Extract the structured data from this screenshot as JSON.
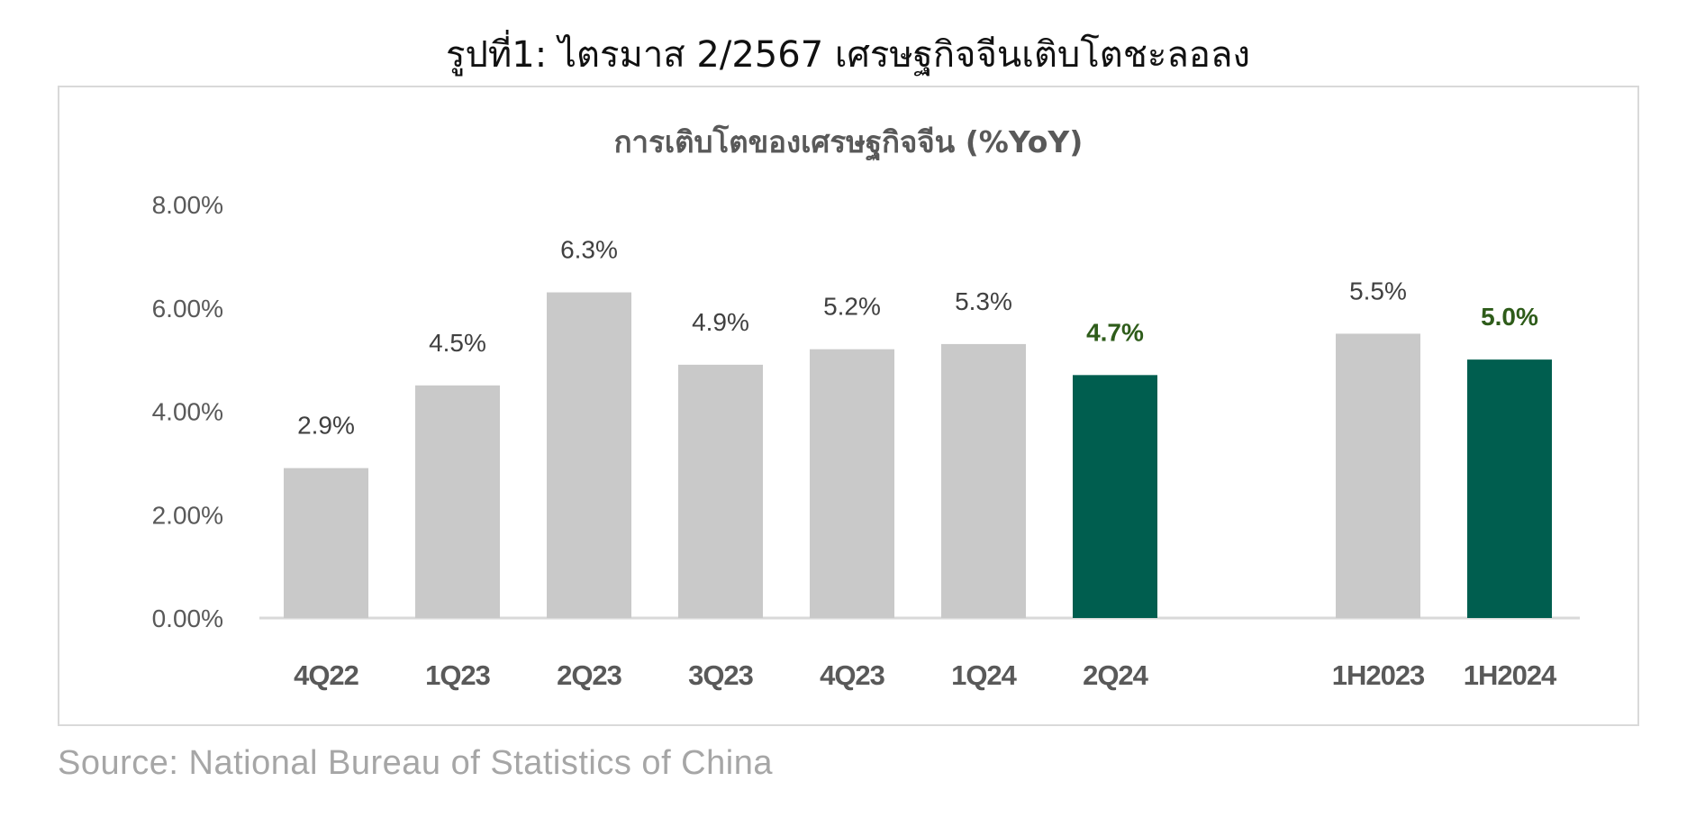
{
  "figure": {
    "title": "รูปที่1: ไตรมาส 2/2567 เศรษฐกิจจีนเติบโตชะลอลง",
    "source": "Source: National Bureau of Statistics of China"
  },
  "chart_data": {
    "type": "bar",
    "title": "การเติบโตของเศรษฐกิจจีน (%YoY)",
    "xlabel": "",
    "ylabel": "",
    "ylim": [
      0,
      8
    ],
    "yticks": [
      "0.00%",
      "2.00%",
      "4.00%",
      "6.00%",
      "8.00%"
    ],
    "grid": false,
    "categories": [
      "4Q22",
      "1Q23",
      "2Q23",
      "3Q23",
      "4Q23",
      "1Q24",
      "2Q24",
      "1H2023",
      "1H2024"
    ],
    "values": [
      2.9,
      4.5,
      6.3,
      4.9,
      5.2,
      5.3,
      4.7,
      5.5,
      5.0
    ],
    "data_labels": [
      "2.9%",
      "4.5%",
      "6.3%",
      "4.9%",
      "5.2%",
      "5.3%",
      "4.7%",
      "5.5%",
      "5.0%"
    ],
    "highlighted": [
      false,
      false,
      false,
      false,
      false,
      false,
      true,
      false,
      true
    ],
    "colors": {
      "bar": "#c9c9c9",
      "highlight_bar": "#005e4f",
      "label": "#404040",
      "highlight_label": "#2e5c1a",
      "axis_tick": "#595959",
      "category": "#595959",
      "title": "#595959",
      "axis_line": "#d9d9d9"
    }
  }
}
